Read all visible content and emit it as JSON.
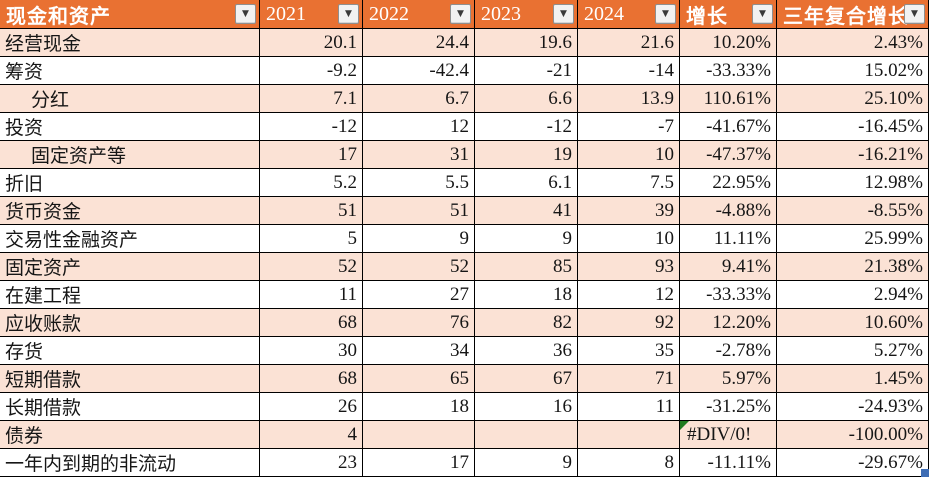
{
  "colors": {
    "header_bg": "#E97132",
    "header_text": "#FFFFFF",
    "band_row_bg": "#FBE2D5",
    "plain_row_bg": "#FFFFFF",
    "grid_line": "#000000",
    "cell_text": "#161616",
    "filter_button_bg": "#F2F2F2",
    "filter_button_border": "#8F8F8F",
    "filter_arrow": "#3A3A3A",
    "error_indicator_green": "#1F7A1F",
    "fill_handle_blue": "#3D6CB4"
  },
  "icons": {
    "filter_dropdown": "▼"
  },
  "table": {
    "columns": [
      {
        "label": "现金和资产",
        "year": false
      },
      {
        "label": "2021",
        "year": true
      },
      {
        "label": "2022",
        "year": true
      },
      {
        "label": "2023",
        "year": true
      },
      {
        "label": "2024",
        "year": true
      },
      {
        "label": "增长",
        "year": false
      },
      {
        "label": "三年复合增长",
        "year": false
      }
    ],
    "rows": [
      {
        "label": "经营现金",
        "indent": false,
        "cells": [
          "20.1",
          "24.4",
          "19.6",
          "21.6",
          "10.20%",
          "2.43%"
        ]
      },
      {
        "label": "筹资",
        "indent": false,
        "cells": [
          "-9.2",
          "-42.4",
          "-21",
          "-14",
          "-33.33%",
          "15.02%"
        ]
      },
      {
        "label": "分红",
        "indent": true,
        "cells": [
          "7.1",
          "6.7",
          "6.6",
          "13.9",
          "110.61%",
          "25.10%"
        ]
      },
      {
        "label": "投资",
        "indent": false,
        "cells": [
          "-12",
          "12",
          "-12",
          "-7",
          "-41.67%",
          "-16.45%"
        ]
      },
      {
        "label": "固定资产等",
        "indent": true,
        "cells": [
          "17",
          "31",
          "19",
          "10",
          "-47.37%",
          "-16.21%"
        ]
      },
      {
        "label": "折旧",
        "indent": false,
        "cells": [
          "5.2",
          "5.5",
          "6.1",
          "7.5",
          "22.95%",
          "12.98%"
        ]
      },
      {
        "label": "货币资金",
        "indent": false,
        "cells": [
          "51",
          "51",
          "41",
          "39",
          "-4.88%",
          "-8.55%"
        ]
      },
      {
        "label": "交易性金融资产",
        "indent": false,
        "cells": [
          "5",
          "9",
          "9",
          "10",
          "11.11%",
          "25.99%"
        ]
      },
      {
        "label": "固定资产",
        "indent": false,
        "cells": [
          "52",
          "52",
          "85",
          "93",
          "9.41%",
          "21.38%"
        ]
      },
      {
        "label": "在建工程",
        "indent": false,
        "cells": [
          "11",
          "27",
          "18",
          "12",
          "-33.33%",
          "2.94%"
        ]
      },
      {
        "label": "应收账款",
        "indent": false,
        "cells": [
          "68",
          "76",
          "82",
          "92",
          "12.20%",
          "10.60%"
        ]
      },
      {
        "label": "存货",
        "indent": false,
        "cells": [
          "30",
          "34",
          "36",
          "35",
          "-2.78%",
          "5.27%"
        ]
      },
      {
        "label": "短期借款",
        "indent": false,
        "cells": [
          "68",
          "65",
          "67",
          "71",
          "5.97%",
          "1.45%"
        ]
      },
      {
        "label": "长期借款",
        "indent": false,
        "cells": [
          "26",
          "18",
          "16",
          "11",
          "-31.25%",
          "-24.93%"
        ]
      },
      {
        "label": "债券",
        "indent": false,
        "cells": [
          "4",
          "",
          "",
          "",
          "#DIV/0!",
          "-100.00%"
        ],
        "error_col": 4
      },
      {
        "label": "一年内到期的非流动",
        "indent": false,
        "cells": [
          "23",
          "17",
          "9",
          "8",
          "-11.11%",
          "-29.67%"
        ]
      }
    ]
  }
}
